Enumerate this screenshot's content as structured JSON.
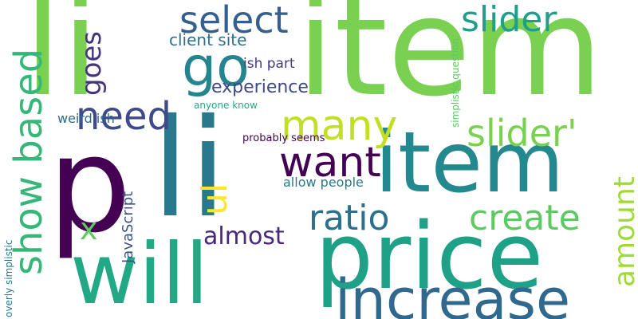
{
  "words": [
    {
      "text": "li",
      "color": "#7ad151",
      "rotated": false
    },
    {
      "text": "item",
      "color": "#7ad151",
      "rotated": false
    },
    {
      "text": "p",
      "color": "#440154",
      "rotated": false
    },
    {
      "text": "li",
      "color": "#2a788e",
      "rotated": false
    },
    {
      "text": "item",
      "color": "#23898e",
      "rotated": false
    },
    {
      "text": "price",
      "color": "#1fa187",
      "rotated": false
    },
    {
      "text": "will",
      "color": "#22a884",
      "rotated": false
    },
    {
      "text": "increase",
      "color": "#31688e",
      "rotated": false
    },
    {
      "text": "select",
      "color": "#355f8d",
      "rotated": false
    },
    {
      "text": "slider",
      "color": "#1f9e89",
      "rotated": false
    },
    {
      "text": "go",
      "color": "#25858e",
      "rotated": false
    },
    {
      "text": "need",
      "color": "#3e4a89",
      "rotated": false
    },
    {
      "text": "many",
      "color": "#c2df23",
      "rotated": false
    },
    {
      "text": "slider'",
      "color": "#7ad151",
      "rotated": false
    },
    {
      "text": "want",
      "color": "#440154",
      "rotated": false
    },
    {
      "text": "ratio",
      "color": "#2d708e",
      "rotated": false
    },
    {
      "text": "create",
      "color": "#5ec962",
      "rotated": false
    },
    {
      "text": "almost",
      "color": "#482878",
      "rotated": false
    },
    {
      "text": "client site",
      "color": "#2d708e",
      "rotated": false
    },
    {
      "text": "ish part",
      "color": "#443983",
      "rotated": false
    },
    {
      "text": "experience",
      "color": "#3e4a89",
      "rotated": false
    },
    {
      "text": "anyone know",
      "color": "#22a884",
      "rotated": false
    },
    {
      "text": "weird ish",
      "color": "#31688e",
      "rotated": false
    },
    {
      "text": "probably seems",
      "color": "#440154",
      "rotated": false
    },
    {
      "text": "allow people",
      "color": "#2a788e",
      "rotated": false
    },
    {
      "text": "x",
      "color": "#5ec962",
      "rotated": false
    },
    {
      "text": "show based",
      "color": "#35b779",
      "rotated": true
    },
    {
      "text": "goes",
      "color": "#46337e",
      "rotated": true
    },
    {
      "text": "ul",
      "color": "#fde725",
      "rotated": true
    },
    {
      "text": "JavaScript",
      "color": "#3b528b",
      "rotated": true
    },
    {
      "text": "amount",
      "color": "#a0da39",
      "rotated": true
    },
    {
      "text": "simplistic question",
      "color": "#5ec962",
      "rotated": true
    },
    {
      "text": "overly simplistic",
      "color": "#2a788e",
      "rotated": true
    }
  ]
}
